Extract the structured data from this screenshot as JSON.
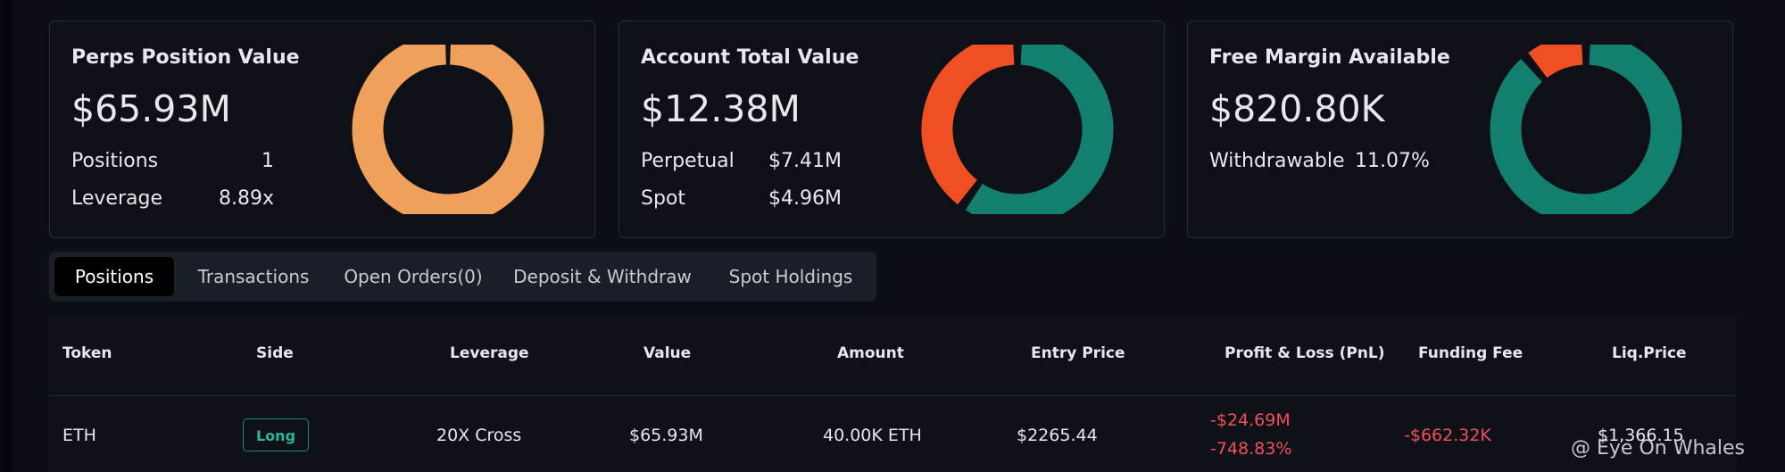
{
  "cards": [
    {
      "title": "Perps Position Value",
      "total": {
        "value": 65.93,
        "label": "$65.93M"
      },
      "rows": [
        {
          "label": "Positions",
          "value": "1"
        },
        {
          "label": "Leverage",
          "value": "8.89x"
        }
      ],
      "donut_color": "#f0a05a"
    },
    {
      "title": "Account Total Value",
      "total": {
        "value": 12.38,
        "label": "$12.38M"
      },
      "rows": [
        {
          "label": "Perpetual",
          "value": {
            "value": 7.41,
            "label": "$7.41M"
          },
          "color": "#13806f"
        },
        {
          "label": "Spot",
          "value": {
            "value": 4.96,
            "label": "$4.96M"
          },
          "color": "#f04e23"
        }
      ]
    },
    {
      "title": "Free Margin Available",
      "total": {
        "value": 820.8,
        "label": "$820.80K"
      },
      "rows": [
        {
          "label": "Withdrawable",
          "value": {
            "value": 11.07,
            "label": "11.07%"
          },
          "color": "#f04e23",
          "percent": true
        }
      ],
      "donut_color": "#13806f"
    }
  ],
  "tabs": [
    "Positions",
    "Transactions",
    "Open Orders(0)",
    "Deposit & Withdraw",
    "Spot Holdings"
  ],
  "active_tab": 0,
  "table": {
    "headers": [
      "Token",
      "Side",
      "Leverage",
      "Value",
      "Amount",
      "Entry Price",
      "Profit & Loss (PnL)",
      "Funding Fee",
      "Liq.Price"
    ],
    "rows": [
      {
        "token": "ETH",
        "side": "Long",
        "leverage": "20X Cross",
        "value": "$65.93M",
        "amount": "40.00K ETH",
        "entry": "$2265.44",
        "pnl": [
          "-$24.69M",
          "-748.83%"
        ],
        "funding": "-$662.32K",
        "liq": "$1,366.15"
      }
    ]
  },
  "watermark": "@ Eye On Whales"
}
